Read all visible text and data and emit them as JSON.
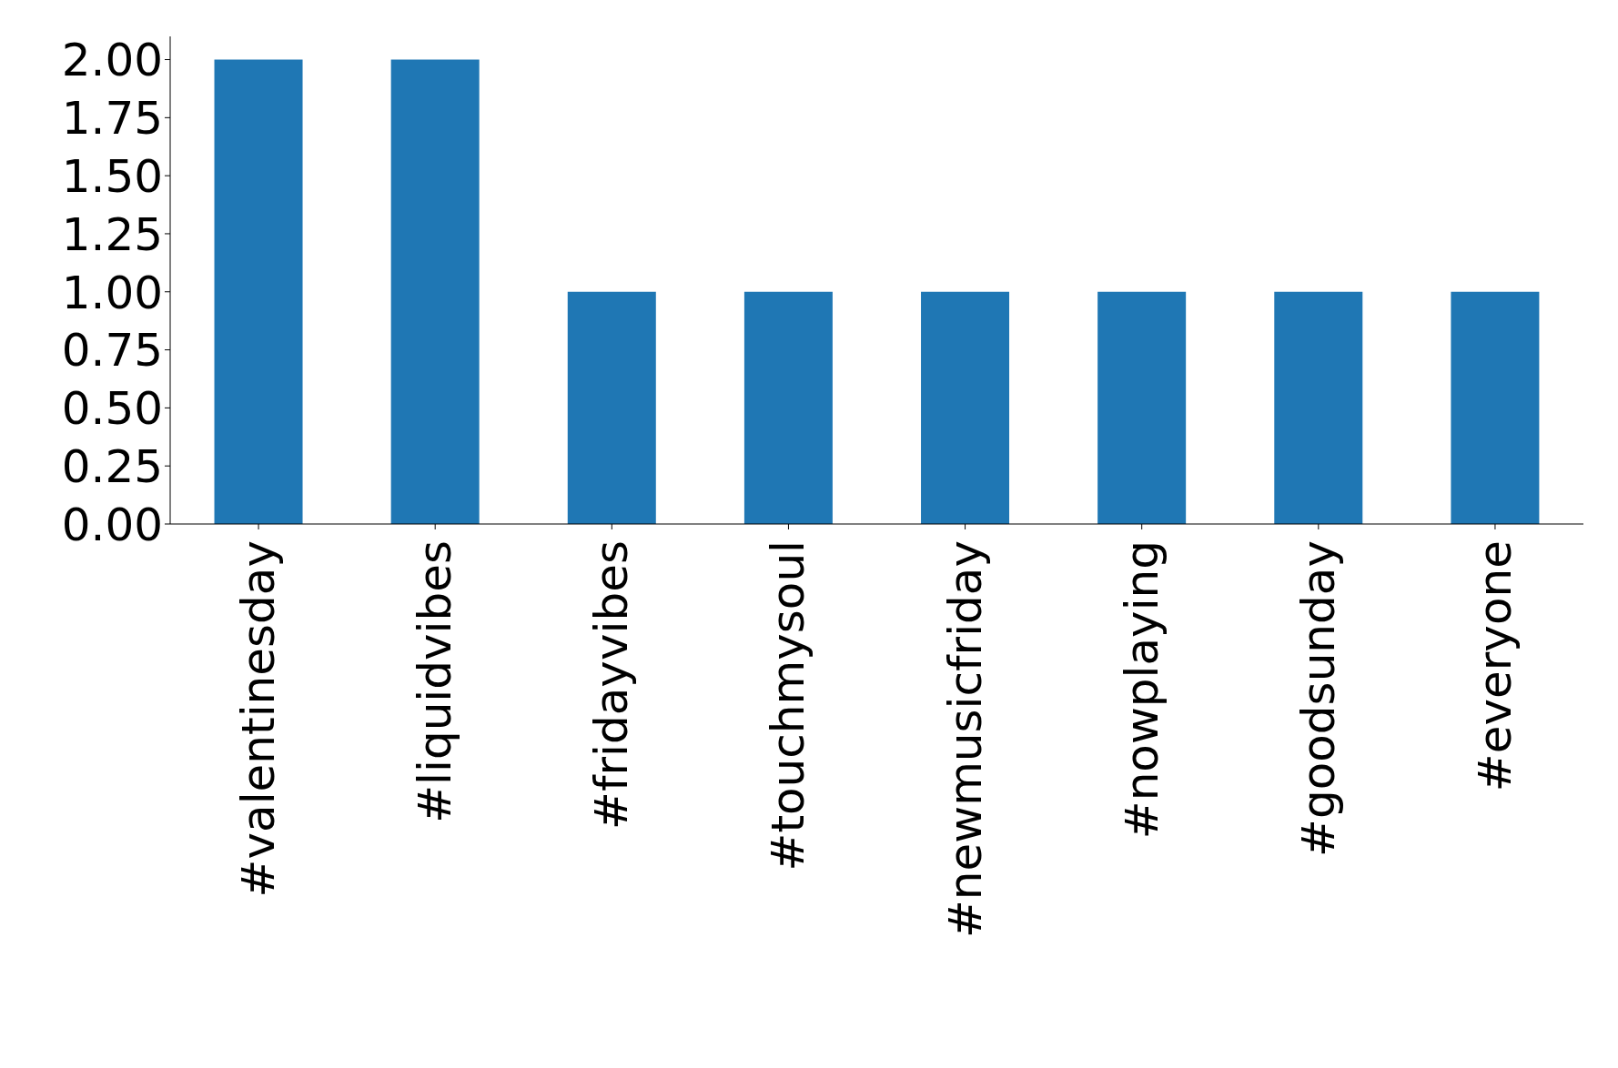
{
  "chart_data": {
    "type": "bar",
    "categories": [
      "#valentinesday",
      "#liquidvibes",
      "#fridayvibes",
      "#touchmysoul",
      "#newmusicfriday",
      "#nowplaying",
      "#goodsunday",
      "#everyone"
    ],
    "values": [
      2,
      2,
      1,
      1,
      1,
      1,
      1,
      1
    ],
    "color": "#1f77b4",
    "ylim": [
      0,
      2.1
    ],
    "yticks": [
      {
        "value": 0,
        "label": "0.00"
      },
      {
        "value": 0.25,
        "label": "0.25"
      },
      {
        "value": 0.5,
        "label": "0.50"
      },
      {
        "value": 0.75,
        "label": "0.75"
      },
      {
        "value": 1,
        "label": "1.00"
      },
      {
        "value": 1.25,
        "label": "1.25"
      },
      {
        "value": 1.5,
        "label": "1.50"
      },
      {
        "value": 1.75,
        "label": "1.75"
      },
      {
        "value": 2,
        "label": "2.00"
      }
    ],
    "grid": false,
    "legend": false
  }
}
